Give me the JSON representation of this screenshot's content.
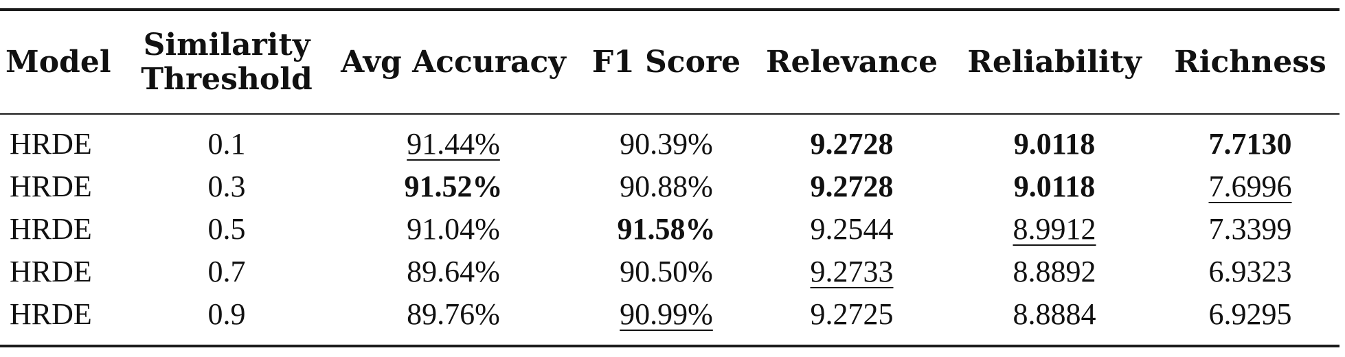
{
  "headers": {
    "model": "Model",
    "threshold_line1": "Similarity",
    "threshold_line2": "Threshold",
    "avg_accuracy": "Avg Accuracy",
    "f1": "F1 Score",
    "relevance": "Relevance",
    "reliability": "Reliability",
    "richness": "Richness"
  },
  "rows": [
    {
      "model": "HRDE",
      "threshold": "0.1",
      "avg_accuracy": "91.44%",
      "f1": "90.39%",
      "relevance": "9.2728",
      "reliability": "9.0118",
      "richness": "7.7130"
    },
    {
      "model": "HRDE",
      "threshold": "0.3",
      "avg_accuracy": "91.52%",
      "f1": "90.88%",
      "relevance": "9.2728",
      "reliability": "9.0118",
      "richness": "7.6996"
    },
    {
      "model": "HRDE",
      "threshold": "0.5",
      "avg_accuracy": "91.04%",
      "f1": "91.58%",
      "relevance": "9.2544",
      "reliability": "8.9912",
      "richness": "7.3399"
    },
    {
      "model": "HRDE",
      "threshold": "0.7",
      "avg_accuracy": "89.64%",
      "f1": "90.50%",
      "relevance": "9.2733",
      "reliability": "8.8892",
      "richness": "6.9323"
    },
    {
      "model": "HRDE",
      "threshold": "0.9",
      "avg_accuracy": "89.76%",
      "f1": "90.99%",
      "relevance": "9.2725",
      "reliability": "8.8884",
      "richness": "6.9295"
    }
  ]
}
